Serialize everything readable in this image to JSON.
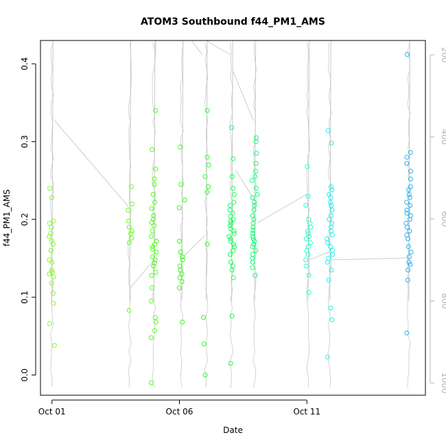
{
  "chart_data": {
    "type": "scatter",
    "title": "ATOM3 Southbound f44_PM1_AMS",
    "xlabel": "Date",
    "ylabel": "f44_PM1_AMS",
    "x_ticks": [
      {
        "day": 1,
        "label": "Oct 01"
      },
      {
        "day": 6,
        "label": "Oct 06"
      },
      {
        "day": 11,
        "label": "Oct 11"
      }
    ],
    "y_ticks": [
      0.0,
      0.1,
      0.2,
      0.3,
      0.4
    ],
    "y_tick_labels": [
      "0.0",
      "0.1",
      "0.2",
      "0.3",
      "0.4"
    ],
    "secondary_axis": {
      "description": "pressure (hPa) drawn as grey line, inverted scale",
      "ticks": [
        200,
        400,
        600,
        800,
        1000
      ],
      "tick_labels": [
        "200",
        "400",
        "600",
        "800",
        "1000"
      ],
      "color": "#b4b4b4"
    },
    "xlim_days": [
      0.55,
      15.65
    ],
    "ylim": [
      -0.026,
      0.43
    ],
    "secondary_ylim": [
      1030,
      165
    ],
    "grid": false,
    "color_scale": "hue shifts from green-yellow (early) to blue (late)",
    "series": [
      {
        "group": "Oct 01",
        "day": 1.0,
        "color": "#7fff22",
        "values": [
          0.24,
          0.228,
          0.198,
          0.195,
          0.19,
          0.182,
          0.178,
          0.172,
          0.168,
          0.16,
          0.148,
          0.145,
          0.135,
          0.132,
          0.13,
          0.126,
          0.118,
          0.105,
          0.092,
          0.066,
          0.038
        ]
      },
      {
        "group": "Oct 04",
        "day": 4.05,
        "color": "#66ff1a",
        "values": [
          0.242,
          0.22,
          0.212,
          0.198,
          0.19,
          0.185,
          0.182,
          0.176,
          0.17,
          0.083
        ]
      },
      {
        "group": "Oct 05",
        "day": 5.0,
        "color": "#4cff10",
        "values": [
          0.34,
          0.29,
          0.265,
          0.252,
          0.245,
          0.232,
          0.222,
          0.214,
          0.205,
          0.2,
          0.196,
          0.192,
          0.185,
          0.178,
          0.172,
          0.168,
          0.165,
          0.162,
          0.158,
          0.152,
          0.148,
          0.144,
          0.14,
          0.132,
          0.128,
          0.112,
          0.095,
          0.074,
          0.068,
          0.057,
          0.048,
          -0.01
        ]
      },
      {
        "group": "Oct 06",
        "day": 6.1,
        "color": "#33ff10",
        "values": [
          0.293,
          0.245,
          0.225,
          0.215,
          0.172,
          0.158,
          0.152,
          0.148,
          0.14,
          0.135,
          0.13,
          0.125,
          0.12,
          0.112,
          0.068
        ]
      },
      {
        "group": "Oct 07",
        "day": 7.05,
        "color": "#22ff22",
        "values": [
          0.34,
          0.28,
          0.27,
          0.255,
          0.242,
          0.235,
          0.168,
          0.074,
          0.04,
          0.0
        ]
      },
      {
        "group": "Oct 08",
        "day": 8.05,
        "color": "#14ff5a",
        "values": [
          0.318,
          0.278,
          0.255,
          0.24,
          0.232,
          0.222,
          0.218,
          0.212,
          0.208,
          0.204,
          0.2,
          0.198,
          0.195,
          0.192,
          0.188,
          0.185,
          0.182,
          0.178,
          0.175,
          0.172,
          0.168,
          0.165,
          0.16,
          0.155,
          0.145,
          0.14,
          0.135,
          0.125,
          0.076,
          0.015
        ]
      },
      {
        "group": "Oct 09",
        "day": 8.95,
        "color": "#10ff78",
        "values": [
          0.305,
          0.3,
          0.285,
          0.272,
          0.262,
          0.255,
          0.25,
          0.24,
          0.232,
          0.228,
          0.222,
          0.218,
          0.212,
          0.205,
          0.2,
          0.195,
          0.19,
          0.186,
          0.182,
          0.178,
          0.175,
          0.172,
          0.168,
          0.165,
          0.16,
          0.155,
          0.15,
          0.145,
          0.138,
          0.128
        ]
      },
      {
        "group": "Oct 11",
        "day": 11.05,
        "color": "#22ffd2",
        "values": [
          0.268,
          0.23,
          0.218,
          0.2,
          0.195,
          0.19,
          0.185,
          0.182,
          0.178,
          0.175,
          0.17,
          0.165,
          0.16,
          0.155,
          0.148,
          0.14,
          0.128,
          0.106
        ]
      },
      {
        "group": "Oct 12",
        "day": 11.9,
        "color": "#1ef0f0",
        "values": [
          0.314,
          0.298,
          0.242,
          0.238,
          0.232,
          0.228,
          0.222,
          0.218,
          0.212,
          0.205,
          0.2,
          0.195,
          0.19,
          0.185,
          0.18,
          0.175,
          0.17,
          0.165,
          0.16,
          0.155,
          0.15,
          0.145,
          0.135,
          0.122,
          0.086,
          0.071,
          0.023
        ]
      },
      {
        "group": "Oct 15",
        "day": 15.0,
        "color": "#2aaee8",
        "values": [
          0.412,
          0.286,
          0.28,
          0.272,
          0.262,
          0.252,
          0.242,
          0.238,
          0.232,
          0.228,
          0.222,
          0.218,
          0.212,
          0.208,
          0.205,
          0.2,
          0.195,
          0.19,
          0.185,
          0.18,
          0.175,
          0.165,
          0.158,
          0.152,
          0.145,
          0.142,
          0.135,
          0.122,
          0.054
        ]
      }
    ]
  }
}
